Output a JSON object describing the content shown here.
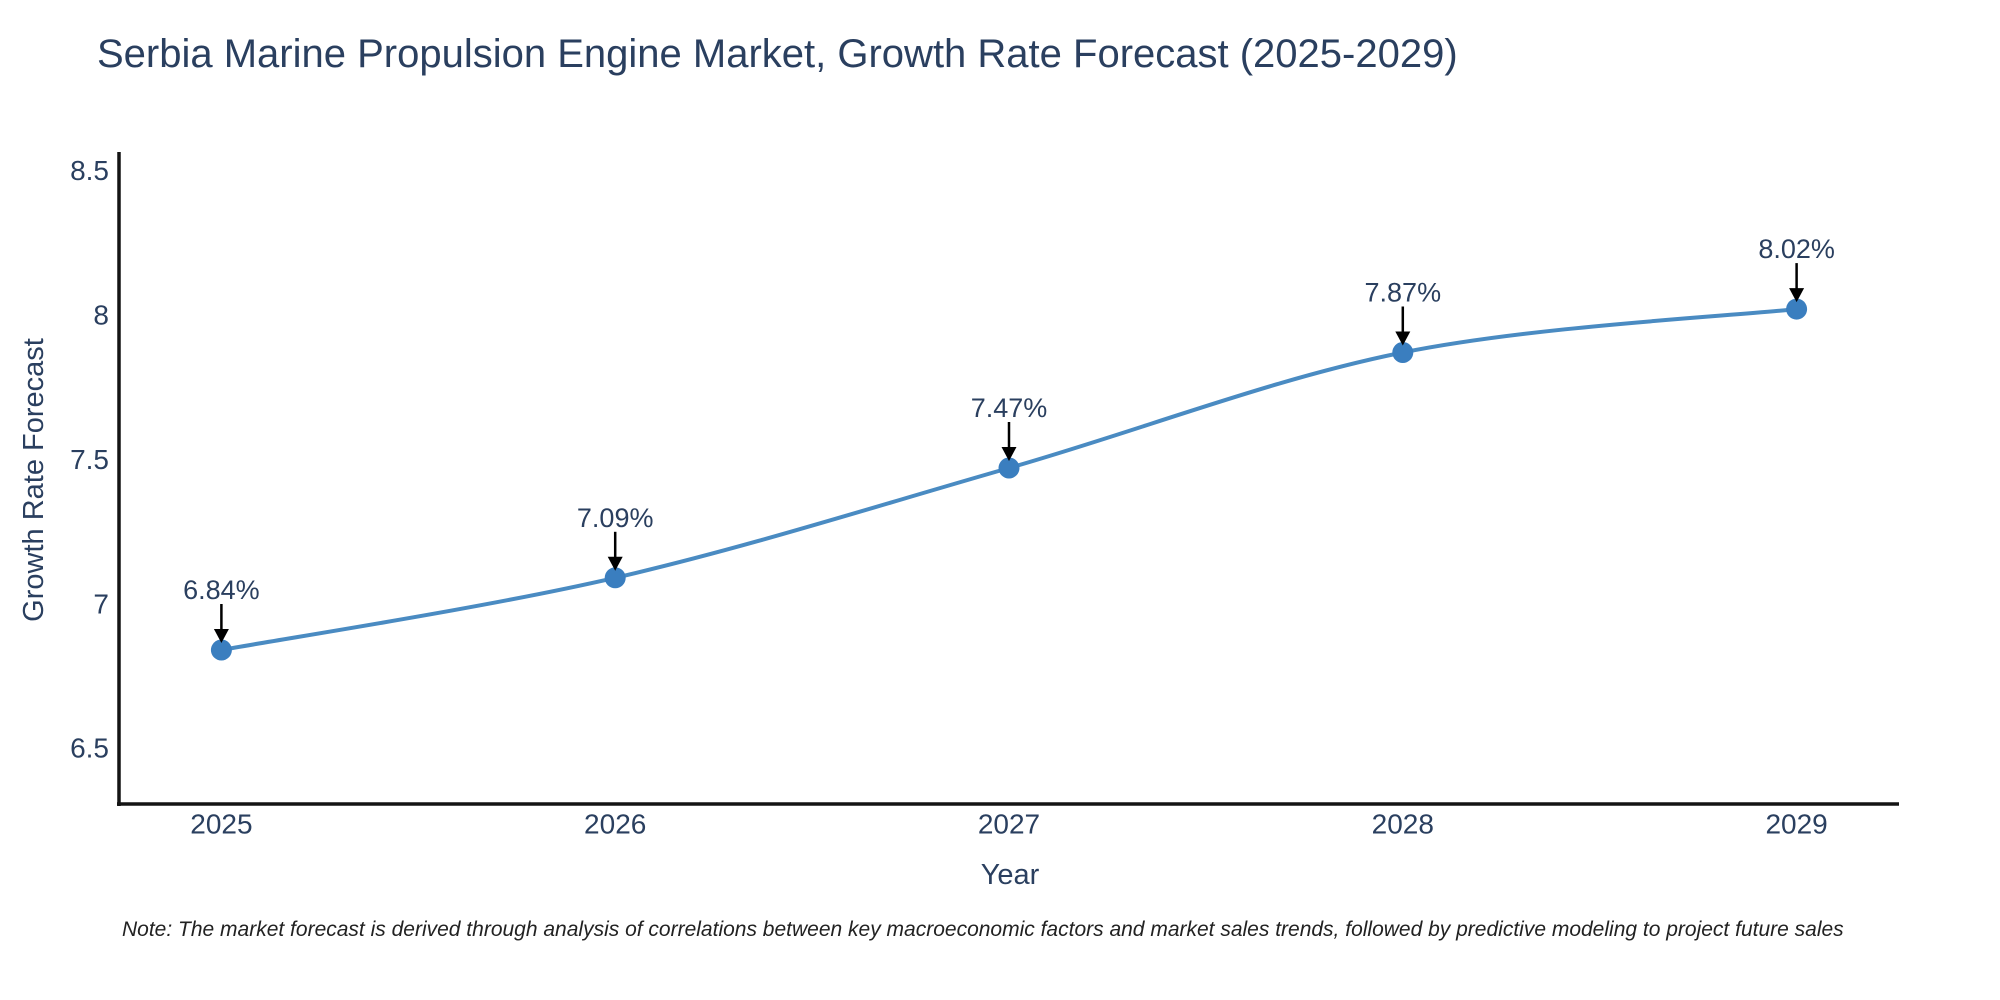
{
  "title": "Serbia Marine Propulsion Engine Market, Growth Rate Forecast (2025-2029)",
  "note": "Note: The market forecast is derived through analysis of correlations between key macroeconomic factors and market sales trends, followed by predictive modeling to project future sales",
  "chart_data": {
    "type": "line",
    "title": "Serbia Marine Propulsion Engine Market, Growth Rate Forecast (2025-2029)",
    "xlabel": "Year",
    "ylabel": "Growth Rate Forecast",
    "x": [
      2025,
      2026,
      2027,
      2028,
      2029
    ],
    "series": [
      {
        "name": "Growth Rate Forecast",
        "values": [
          6.84,
          7.09,
          7.47,
          7.87,
          8.02
        ]
      }
    ],
    "point_labels": [
      "6.84%",
      "7.09%",
      "7.47%",
      "7.87%",
      "8.02%"
    ],
    "xticks": [
      "2025",
      "2026",
      "2027",
      "2028",
      "2029"
    ],
    "yticks": [
      "6.5",
      "7",
      "7.5",
      "8",
      "8.5"
    ],
    "ytick_values": [
      6.5,
      7.0,
      7.5,
      8.0,
      8.5
    ],
    "xlim": [
      2024.74,
      2029.26
    ],
    "ylim": [
      6.307,
      8.55
    ],
    "line_shape": "spline",
    "grid": false,
    "legend": "none",
    "annotation_arrows": true,
    "colors": {
      "line": "#4a8bc2",
      "marker": "#3a7ebf",
      "axis": "#141414",
      "text": "#2a3f5f",
      "arrow": "#000000",
      "note": "#222222",
      "background": "#ffffff"
    }
  }
}
